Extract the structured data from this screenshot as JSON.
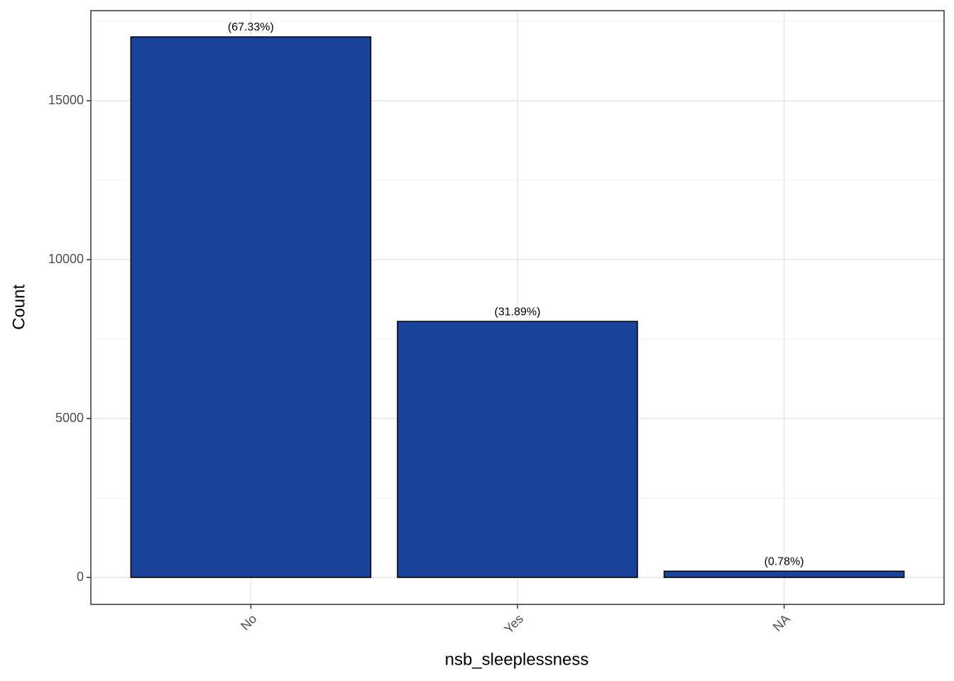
{
  "chart_data": {
    "type": "bar",
    "x_label": "nsb_sleeplessness",
    "y_label": "Count",
    "categories": [
      "No",
      "Yes",
      "NA"
    ],
    "values": [
      17009,
      8056,
      197
    ],
    "bar_labels": [
      "(67.33%)",
      "(31.89%)",
      "(0.78%)"
    ],
    "color": "#19439a",
    "edge_color": "#000000",
    "ylim": [
      -848,
      17835
    ],
    "yticks": [
      0,
      5000,
      10000,
      15000
    ],
    "minor_yticks": [
      2500,
      7500,
      12500,
      17500
    ],
    "grid": true
  }
}
